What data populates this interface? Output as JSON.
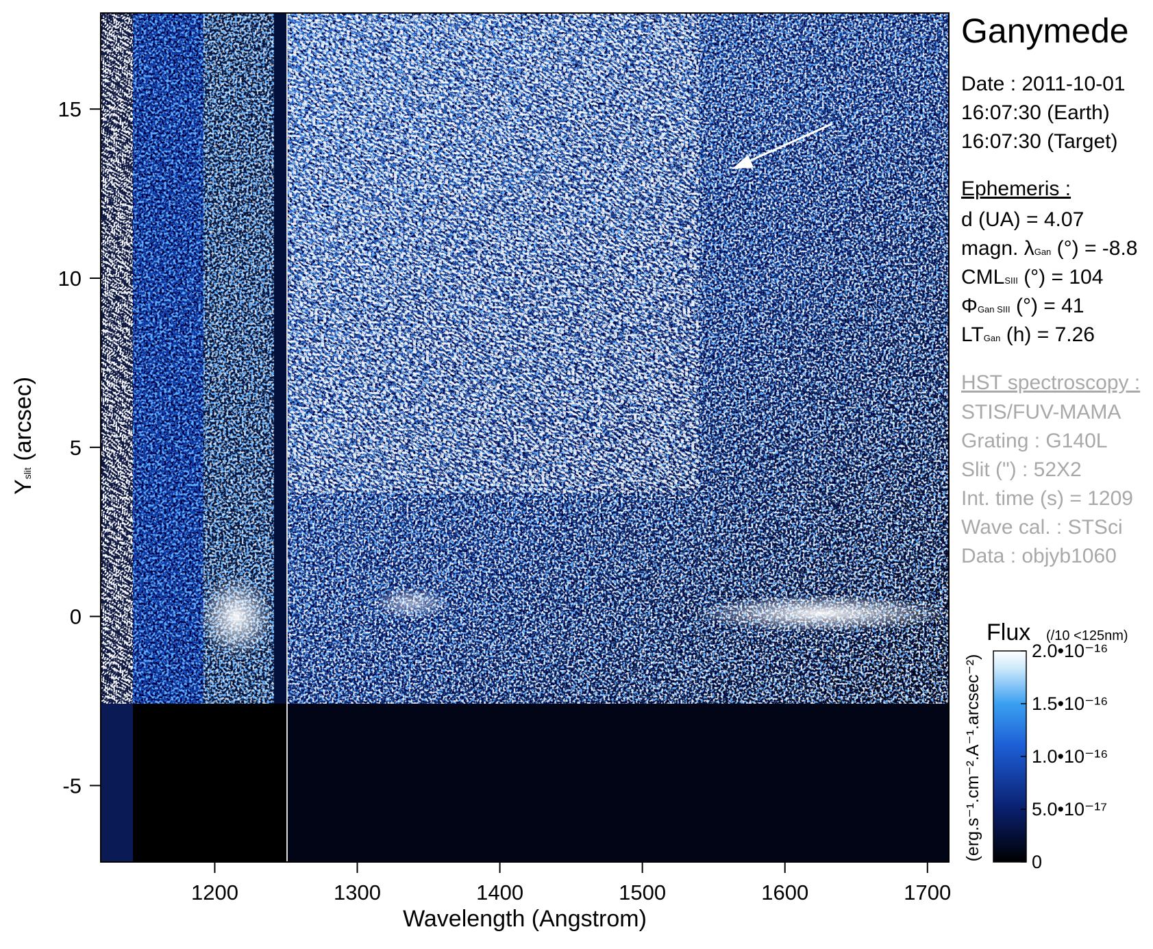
{
  "chart_data": {
    "type": "image",
    "title": "Ganymede",
    "x_label": "Wavelength (Angstrom)",
    "y_label": {
      "main": "Y",
      "sub": "slit",
      "unit": " (arcsec)"
    },
    "xlim": [
      1120,
      1715
    ],
    "ylim": [
      -7.26,
      17.84
    ],
    "xticks": [
      1200,
      1300,
      1400,
      1500,
      1600,
      1700
    ],
    "yticks": [
      -5,
      0,
      5,
      10,
      15
    ],
    "colorbar": {
      "title": "Flux",
      "note": "(/10 <125nm)",
      "label": "(erg.s⁻¹.cm⁻².A⁻¹.arcsec⁻²)",
      "lim": [
        0,
        2e-16
      ],
      "ticks": [
        0,
        {
          "value": 5e-17,
          "label": "5.0•10⁻¹⁷"
        },
        {
          "value": 1e-16,
          "label": "1.0•10⁻¹⁶"
        },
        {
          "value": 1.5e-16,
          "label": "1.5•10⁻¹⁶"
        },
        {
          "value": 2e-16,
          "label": "2.0•10⁻¹⁶"
        }
      ]
    },
    "annotations": {
      "date": [
        "Date : 2011-10-01",
        "16:07:30 (Earth)",
        "16:07:30 (Target)"
      ],
      "ephemeris_heading": "Ephemeris :",
      "ephemeris": [
        {
          "pre": "d (UA)     = 4.07"
        },
        {
          "pre": "magn. λ",
          "sub": "Gan",
          "post": " (°)  = -8.8"
        },
        {
          "pre": "CML",
          "sub": "SIII",
          "post": " (°) = 104"
        },
        {
          "pre": "Φ",
          "sub": "Gan SIII",
          "post": " (°) = 41"
        },
        {
          "pre": "LT",
          "sub": "Gan",
          "post": " (h) = 7.26"
        }
      ],
      "hst_heading": "HST spectroscopy :",
      "hst": [
        "STIS/FUV-MAMA",
        "Grating : G140L",
        "Slit (\") : 52X2",
        "Int. time (s) = 1209",
        "Wave cal. : STSci",
        "Data : objyb1060"
      ]
    }
  }
}
